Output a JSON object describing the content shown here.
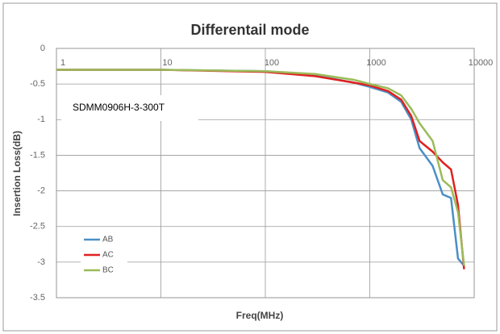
{
  "chart_data": {
    "type": "line",
    "title": "Differentail mode",
    "xlabel": "Freq(MHz)",
    "ylabel": "Insertion Loss(dB)",
    "annotation": "SDMM0906H-3-300T",
    "xscale": "log",
    "x": [
      1,
      10,
      100,
      300,
      700,
      1000,
      1500,
      2000,
      2500,
      3000,
      4000,
      5000,
      6000,
      7000,
      8000
    ],
    "series": [
      {
        "name": "AB",
        "color": "#4a8fc7",
        "values": [
          -0.3,
          -0.3,
          -0.32,
          -0.38,
          -0.48,
          -0.54,
          -0.62,
          -0.75,
          -1.0,
          -1.4,
          -1.65,
          -2.05,
          -2.1,
          -2.95,
          -3.05
        ]
      },
      {
        "name": "AC",
        "color": "#e0201f",
        "values": [
          -0.3,
          -0.3,
          -0.33,
          -0.39,
          -0.48,
          -0.52,
          -0.6,
          -0.72,
          -0.95,
          -1.3,
          -1.45,
          -1.6,
          -1.7,
          -2.2,
          -3.1
        ]
      },
      {
        "name": "BC",
        "color": "#9bbb59",
        "values": [
          -0.3,
          -0.3,
          -0.32,
          -0.36,
          -0.44,
          -0.5,
          -0.56,
          -0.66,
          -0.85,
          -1.05,
          -1.3,
          -1.85,
          -1.95,
          -2.3,
          -3.05
        ]
      }
    ],
    "xlim": [
      1,
      10000
    ],
    "xticks": [
      1,
      10,
      100,
      1000,
      10000
    ],
    "ylim": [
      -3.5,
      0
    ],
    "yticks": [
      0,
      -0.5,
      -1,
      -1.5,
      -2,
      -2.5,
      -3,
      -3.5
    ],
    "grid": true,
    "legend": "lower left"
  }
}
